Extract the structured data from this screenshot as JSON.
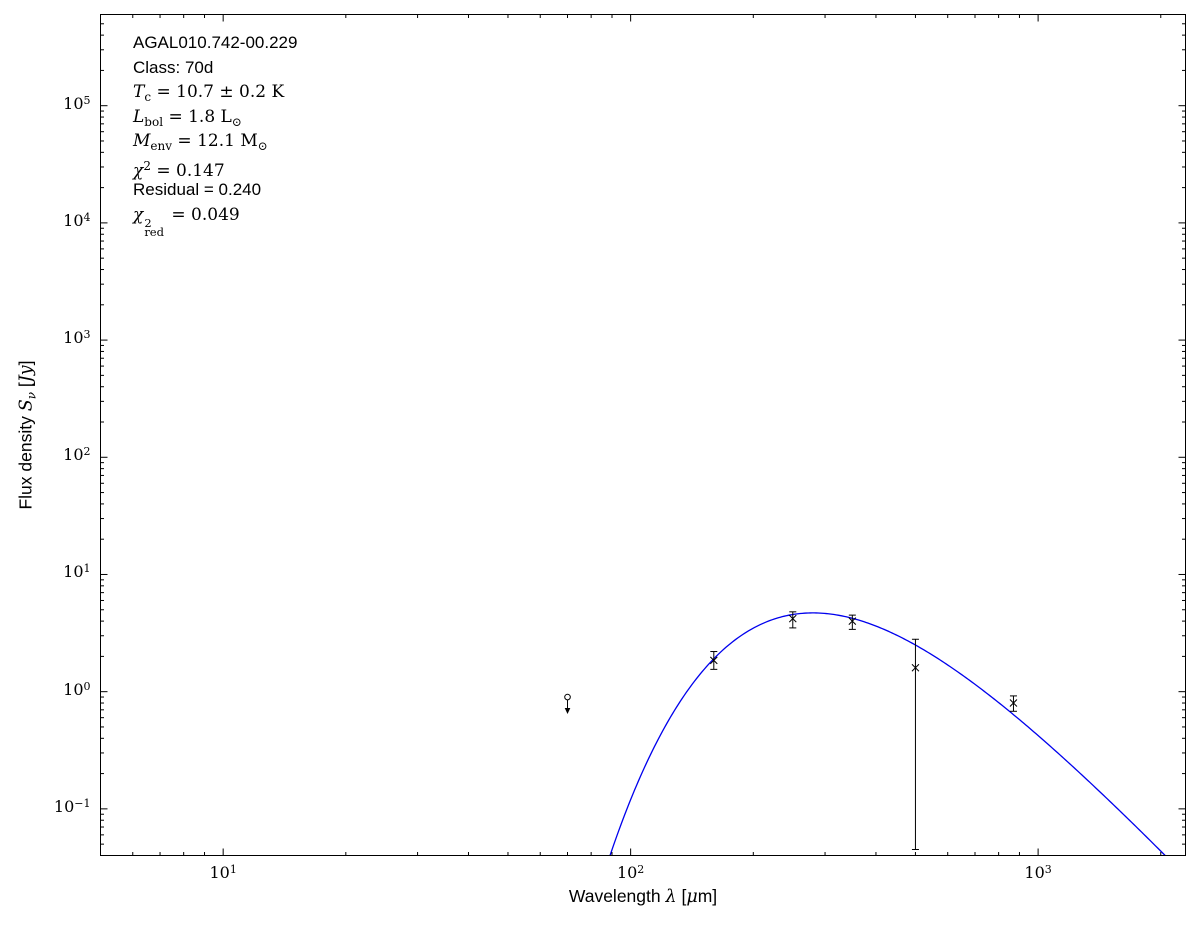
{
  "figure": {
    "background": "#ffffff",
    "frame_color": "#000000",
    "annotation_lines": [
      {
        "font": "sans",
        "segs": [
          {
            "t": "AGAL010.742-00.229"
          }
        ]
      },
      {
        "font": "sans",
        "segs": [
          {
            "t": "Class: 70d"
          }
        ]
      },
      {
        "font": "serif",
        "segs": [
          {
            "t": "T",
            "i": true
          },
          {
            "t": "c",
            "sub": true
          },
          {
            "t": " = 10.7 ± 0.2 K"
          }
        ]
      },
      {
        "font": "serif",
        "segs": [
          {
            "t": "L",
            "i": true
          },
          {
            "t": "bol",
            "sub": true
          },
          {
            "t": " = 1.8 L"
          },
          {
            "t": "⊙",
            "sub": true
          }
        ]
      },
      {
        "font": "serif",
        "segs": [
          {
            "t": "M",
            "i": true
          },
          {
            "t": "env",
            "sub": true
          },
          {
            "t": " = 12.1 M"
          },
          {
            "t": "⊙",
            "sub": true
          }
        ]
      },
      {
        "font": "serif",
        "segs": [
          {
            "t": "χ",
            "i": true
          },
          {
            "t": "2",
            "sup": true
          },
          {
            "t": " = 0.147"
          }
        ]
      },
      {
        "font": "sans",
        "segs": [
          {
            "t": "Residual = 0.240"
          }
        ]
      },
      {
        "font": "serif",
        "segs": [
          {
            "t": "χ",
            "i": true
          },
          {
            "stack": {
              "over": "2",
              "under": "red"
            }
          },
          {
            "t": " = 0.049"
          }
        ]
      }
    ],
    "xlabel_segs": [
      {
        "t": "Wavelength ",
        "font": "sans"
      },
      {
        "t": "λ",
        "font": "serif",
        "i": true
      },
      {
        "t": " [",
        "font": "sans"
      },
      {
        "t": "μ",
        "font": "serif",
        "i": true
      },
      {
        "t": "m]",
        "font": "sans"
      }
    ],
    "ylabel_segs": [
      {
        "t": "Flux density ",
        "font": "sans"
      },
      {
        "t": "S",
        "font": "serif",
        "i": true
      },
      {
        "t": "ν",
        "font": "serif",
        "i": true,
        "sub": true
      },
      {
        "t": " [",
        "font": "sans"
      },
      {
        "t": "Jy",
        "font": "serif",
        "i": true
      },
      {
        "t": "]",
        "font": "sans"
      }
    ]
  },
  "chart_data": {
    "type": "scatter",
    "title": "AGAL010.742-00.229",
    "source_class": "70d",
    "fit_results": {
      "T_c_K": "10.7 ± 0.2",
      "L_bol_Lsun": 1.8,
      "M_env_Msun": 12.1,
      "chi2": 0.147,
      "residual": 0.24,
      "chi2_red": 0.049
    },
    "xlabel": "Wavelength λ [μm]",
    "ylabel": "Flux density S_ν [Jy]",
    "x_scale": "log",
    "y_scale": "log",
    "xlim": [
      5,
      2300
    ],
    "ylim": [
      0.04,
      600000
    ],
    "x_major_ticks": [
      10,
      100,
      1000
    ],
    "y_major_ticks": [
      0.1,
      1,
      10,
      100,
      1000,
      10000,
      100000
    ],
    "grid": false,
    "legend": false,
    "points": [
      {
        "wavelength_um": 160,
        "flux_jy": 1.85,
        "err_plus": 0.35,
        "err_minus": 0.3
      },
      {
        "wavelength_um": 250,
        "flux_jy": 4.2,
        "err_plus": 0.6,
        "err_minus": 0.7
      },
      {
        "wavelength_um": 350,
        "flux_jy": 4.0,
        "err_plus": 0.5,
        "err_minus": 0.6
      },
      {
        "wavelength_um": 500,
        "flux_jy": 1.6,
        "err_plus": 1.2,
        "err_minus": 1.555
      },
      {
        "wavelength_um": 870,
        "flux_jy": 0.8,
        "err_plus": 0.12,
        "err_minus": 0.12
      }
    ],
    "upper_limits": [
      {
        "wavelength_um": 70,
        "flux_jy": 0.9
      }
    ],
    "model_curve": {
      "kind": "greybody",
      "T_K": 10.7,
      "beta": 1.84,
      "peak_flux_jy": 4.7,
      "hc_over_k_um_K": 14387.77,
      "color": "#0000ee"
    },
    "marker": {
      "shape": "x",
      "color": "#000000"
    },
    "annotations": [
      "AGAL010.742-00.229",
      "Class: 70d",
      "T_c = 10.7 ± 0.2 K",
      "L_bol = 1.8 L_sun",
      "M_env = 12.1 M_sun",
      "chi^2 = 0.147",
      "Residual = 0.240",
      "chi^2_red = 0.049"
    ]
  }
}
